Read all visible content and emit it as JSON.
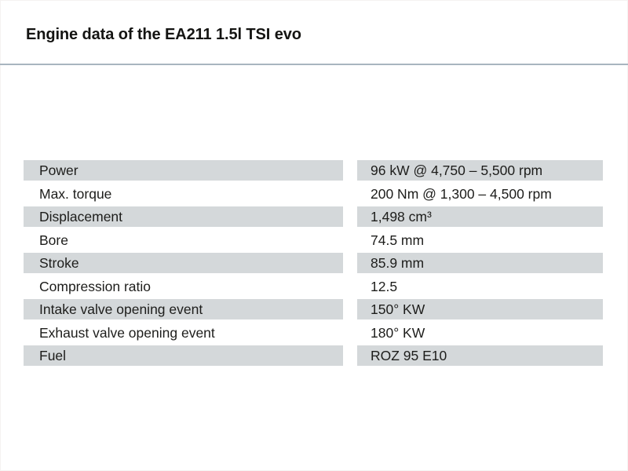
{
  "page": {
    "title": "Engine data of the EA211 1.5l TSI evo",
    "colors": {
      "row_gray": "#d4d8da",
      "rule": "#a8b5bf",
      "text": "#1d1d1b"
    }
  },
  "table": {
    "rows": [
      {
        "label": "Power",
        "value": "96 kW @ 4,750 – 5,500 rpm"
      },
      {
        "label": "Max. torque",
        "value": "200 Nm @ 1,300 – 4,500 rpm"
      },
      {
        "label": "Displacement",
        "value": "1,498 cm³"
      },
      {
        "label": "Bore",
        "value": "74.5 mm"
      },
      {
        "label": "Stroke",
        "value": "85.9 mm"
      },
      {
        "label": "Compression ratio",
        "value": "12.5"
      },
      {
        "label": "Intake valve opening event",
        "value": "150° KW"
      },
      {
        "label": "Exhaust valve opening event",
        "value": "180° KW"
      },
      {
        "label": "Fuel",
        "value": "ROZ 95 E10"
      }
    ]
  }
}
